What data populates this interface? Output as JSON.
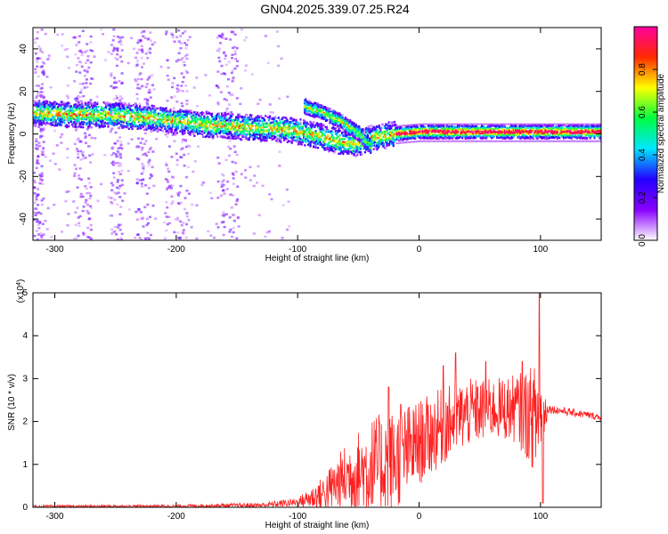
{
  "title": "GN04.2025.339.07.25.R24",
  "chart_data": [
    {
      "type": "heatmap",
      "xlabel": "Height of straight line (km)",
      "ylabel": "Frequency (Hz)",
      "xlim": [
        -318,
        150
      ],
      "ylim": [
        -50,
        50
      ],
      "x_ticks": [
        -300,
        -200,
        -100,
        0,
        100
      ],
      "y_ticks": [
        -40,
        -20,
        0,
        20,
        40
      ],
      "colorbar": {
        "label": "Normalized spectral amplitude",
        "range": [
          0,
          1
        ],
        "ticks": [
          "0.0",
          "0.2",
          "0.4",
          "0.6",
          "0.8"
        ],
        "tick_values": [
          0,
          0.2,
          0.4,
          0.6,
          0.8
        ],
        "colors": [
          "#ffffff",
          "#8a00ff",
          "#2200ff",
          "#00e6ff",
          "#00ff40",
          "#ffff00",
          "#ff2a00",
          "#ff00a0"
        ]
      },
      "ridge": [
        {
          "x": -315,
          "y": 10
        },
        {
          "x": -290,
          "y": 9
        },
        {
          "x": -260,
          "y": 9
        },
        {
          "x": -230,
          "y": 8
        },
        {
          "x": -200,
          "y": 6
        },
        {
          "x": -170,
          "y": 4
        },
        {
          "x": -140,
          "y": 3
        },
        {
          "x": -110,
          "y": 2
        },
        {
          "x": -90,
          "y": 0
        },
        {
          "x": -70,
          "y": -3
        },
        {
          "x": -55,
          "y": -5
        },
        {
          "x": -40,
          "y": -2
        },
        {
          "x": -20,
          "y": 0
        },
        {
          "x": 0,
          "y": 1
        },
        {
          "x": 50,
          "y": 1
        },
        {
          "x": 100,
          "y": 1
        },
        {
          "x": 150,
          "y": 1
        }
      ],
      "upper_branch": [
        {
          "x": -95,
          "y": 13
        },
        {
          "x": -80,
          "y": 10
        },
        {
          "x": -65,
          "y": 6
        },
        {
          "x": -50,
          "y": 0
        },
        {
          "x": -40,
          "y": -6
        }
      ],
      "noise_bands": [
        {
          "x": [
            -318,
            -310
          ]
        },
        {
          "x": [
            -285,
            -270
          ]
        },
        {
          "x": [
            -255,
            -245
          ]
        },
        {
          "x": [
            -235,
            -220
          ]
        },
        {
          "x": [
            -210,
            -190
          ]
        },
        {
          "x": [
            -168,
            -150
          ]
        }
      ]
    },
    {
      "type": "line",
      "xlabel": "Height of straight line (km)",
      "ylabel": "SNR (10 * v/v)",
      "ymultiplier": "(x10",
      "ymultiplier_exp": "4",
      "ymultiplier_close": ")",
      "xlim": [
        -318,
        150
      ],
      "ylim": [
        0,
        5
      ],
      "x_ticks": [
        -300,
        -200,
        -100,
        0,
        100
      ],
      "y_ticks": [
        0,
        1,
        2,
        3,
        4,
        5
      ],
      "color": "#ff2020",
      "envelope": [
        {
          "x": -318,
          "base": 0.02,
          "amp": 0.03
        },
        {
          "x": -200,
          "base": 0.03,
          "amp": 0.03
        },
        {
          "x": -130,
          "base": 0.05,
          "amp": 0.06
        },
        {
          "x": -100,
          "base": 0.12,
          "amp": 0.1
        },
        {
          "x": -80,
          "base": 0.3,
          "amp": 0.4
        },
        {
          "x": -60,
          "base": 0.7,
          "amp": 0.8
        },
        {
          "x": -40,
          "base": 0.9,
          "amp": 1.2
        },
        {
          "x": -20,
          "base": 1.1,
          "amp": 1.2
        },
        {
          "x": 0,
          "base": 1.5,
          "amp": 1.0
        },
        {
          "x": 20,
          "base": 1.9,
          "amp": 0.9
        },
        {
          "x": 40,
          "base": 2.2,
          "amp": 0.8
        },
        {
          "x": 60,
          "base": 2.3,
          "amp": 0.7
        },
        {
          "x": 80,
          "base": 2.3,
          "amp": 0.8
        },
        {
          "x": 100,
          "base": 2.0,
          "amp": 1.4
        },
        {
          "x": 106,
          "base": 2.3,
          "amp": 0.1
        },
        {
          "x": 150,
          "base": 2.1,
          "amp": 0.08
        }
      ],
      "peaks": [
        {
          "x": -25,
          "y": 2.8
        },
        {
          "x": -15,
          "y": 2.4
        },
        {
          "x": 20,
          "y": 3.3
        },
        {
          "x": 30,
          "y": 3.6
        },
        {
          "x": 55,
          "y": 3.4
        },
        {
          "x": 85,
          "y": 3.4
        },
        {
          "x": 99,
          "y": 5.0
        },
        {
          "x": 102,
          "y": 0.1
        }
      ]
    }
  ]
}
